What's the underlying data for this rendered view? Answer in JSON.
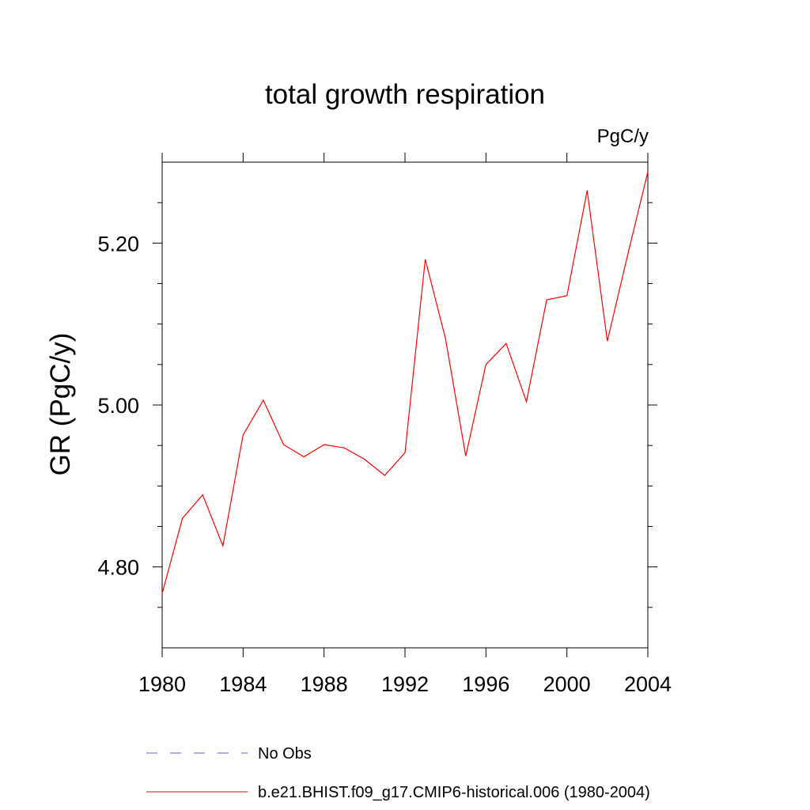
{
  "chart_data": {
    "type": "line",
    "title": "total growth respiration",
    "units": "PgC/y",
    "xlabel": "",
    "ylabel": "GR  (PgC/y)",
    "xlim": [
      1980,
      2004
    ],
    "ylim": [
      4.7,
      5.3
    ],
    "xticks": [
      1980,
      1984,
      1988,
      1992,
      1996,
      2000,
      2004
    ],
    "xtick_labels": [
      "1980",
      "1984",
      "1988",
      "1992",
      "1996",
      "2000",
      "2004"
    ],
    "yticks": [
      4.8,
      5.0,
      5.2
    ],
    "ytick_labels": [
      "4.80",
      "5.00",
      "5.20"
    ],
    "grid": false,
    "legend_position": "bottom",
    "series": [
      {
        "name": "b.e21.BHIST.f09_g17.CMIP6-historical.006 (1980-2004)",
        "color": "#ff0000",
        "style": "solid",
        "x": [
          1980,
          1981,
          1982,
          1983,
          1984,
          1985,
          1986,
          1987,
          1988,
          1989,
          1990,
          1991,
          1992,
          1993,
          1994,
          1995,
          1996,
          1997,
          1998,
          1999,
          2000,
          2001,
          2002,
          2003,
          2004
        ],
        "y": [
          4.767,
          4.86,
          4.889,
          4.826,
          4.963,
          5.006,
          4.951,
          4.936,
          4.951,
          4.947,
          4.933,
          4.913,
          4.941,
          5.18,
          5.082,
          4.937,
          5.05,
          5.076,
          5.004,
          5.13,
          5.135,
          5.265,
          5.079,
          5.185,
          5.288
        ]
      }
    ],
    "legend": [
      {
        "label": "No Obs",
        "color": "#6a5acd",
        "style": "dashed"
      },
      {
        "label": "b.e21.BHIST.f09_g17.CMIP6-historical.006 (1980-2004)",
        "color": "#ff0000",
        "style": "solid"
      }
    ]
  }
}
